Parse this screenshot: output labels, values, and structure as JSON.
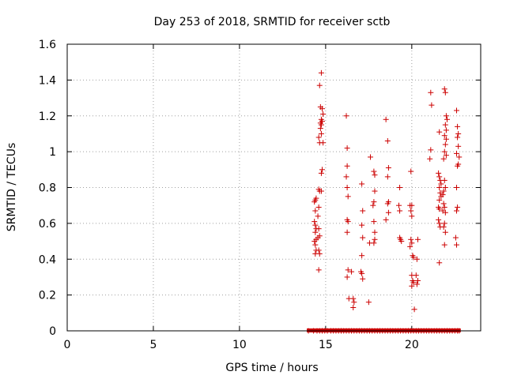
{
  "chart_data": {
    "type": "scatter",
    "title": "Day 253 of 2018, SRMTID for receiver sctb",
    "xlabel": "GPS time / hours",
    "ylabel": "SRMTID / TECUs",
    "xlim": [
      0,
      24
    ],
    "ylim": [
      0,
      1.6
    ],
    "xticks": [
      0,
      5,
      10,
      15,
      20
    ],
    "xtick_labels": [
      "0",
      "5",
      "10",
      "15",
      "20"
    ],
    "yticks": [
      0,
      0.2,
      0.4,
      0.6,
      0.8,
      1.0,
      1.2,
      1.4,
      1.6
    ],
    "ytick_labels": [
      "0",
      "0.2",
      "0.4",
      "0.6",
      "0.8",
      "1",
      "1.2",
      "1.4",
      "1.6"
    ],
    "grid": true,
    "marker": "plus",
    "color": "#cc0000",
    "series": [
      {
        "name": "SRMTID",
        "points": [
          [
            14.4,
            0.73
          ],
          [
            14.45,
            0.74
          ],
          [
            14.35,
            0.72
          ],
          [
            14.4,
            0.67
          ],
          [
            14.35,
            0.61
          ],
          [
            14.4,
            0.59
          ],
          [
            14.45,
            0.57
          ],
          [
            14.4,
            0.55
          ],
          [
            14.45,
            0.51
          ],
          [
            14.35,
            0.5
          ],
          [
            14.4,
            0.48
          ],
          [
            14.45,
            0.45
          ],
          [
            14.4,
            0.43
          ],
          [
            14.6,
            0.79
          ],
          [
            14.65,
            0.78
          ],
          [
            14.6,
            0.69
          ],
          [
            14.55,
            0.64
          ],
          [
            14.6,
            0.57
          ],
          [
            14.65,
            0.53
          ],
          [
            14.55,
            0.52
          ],
          [
            14.6,
            0.45
          ],
          [
            14.65,
            0.43
          ],
          [
            14.6,
            0.34
          ],
          [
            14.75,
            1.44
          ],
          [
            14.65,
            1.37
          ],
          [
            14.7,
            1.25
          ],
          [
            14.8,
            1.24
          ],
          [
            14.85,
            1.21
          ],
          [
            14.75,
            1.18
          ],
          [
            14.7,
            1.16
          ],
          [
            14.8,
            1.17
          ],
          [
            14.75,
            1.15
          ],
          [
            14.7,
            1.13
          ],
          [
            14.75,
            1.1
          ],
          [
            14.6,
            1.08
          ],
          [
            14.65,
            1.05
          ],
          [
            14.85,
            1.05
          ],
          [
            14.8,
            0.9
          ],
          [
            14.75,
            0.88
          ],
          [
            14.75,
            0.78
          ],
          [
            16.2,
            1.2
          ],
          [
            16.25,
            1.02
          ],
          [
            16.25,
            0.92
          ],
          [
            16.2,
            0.86
          ],
          [
            16.25,
            0.8
          ],
          [
            16.3,
            0.75
          ],
          [
            16.25,
            0.62
          ],
          [
            16.3,
            0.61
          ],
          [
            16.25,
            0.55
          ],
          [
            16.3,
            0.34
          ],
          [
            16.25,
            0.3
          ],
          [
            16.35,
            0.18
          ],
          [
            16.5,
            0.33
          ],
          [
            16.6,
            0.18
          ],
          [
            16.65,
            0.16
          ],
          [
            16.6,
            0.13
          ],
          [
            17.1,
            0.82
          ],
          [
            17.15,
            0.67
          ],
          [
            17.1,
            0.59
          ],
          [
            17.15,
            0.52
          ],
          [
            17.1,
            0.42
          ],
          [
            17.05,
            0.33
          ],
          [
            17.1,
            0.32
          ],
          [
            17.15,
            0.29
          ],
          [
            17.6,
            0.97
          ],
          [
            17.55,
            0.49
          ],
          [
            17.5,
            0.16
          ],
          [
            17.8,
            0.89
          ],
          [
            17.85,
            0.87
          ],
          [
            17.85,
            0.78
          ],
          [
            17.8,
            0.72
          ],
          [
            17.75,
            0.7
          ],
          [
            17.8,
            0.61
          ],
          [
            17.85,
            0.55
          ],
          [
            17.85,
            0.51
          ],
          [
            17.8,
            0.49
          ],
          [
            18.5,
            1.18
          ],
          [
            18.6,
            1.06
          ],
          [
            18.65,
            0.91
          ],
          [
            18.6,
            0.86
          ],
          [
            18.65,
            0.72
          ],
          [
            18.6,
            0.71
          ],
          [
            18.65,
            0.66
          ],
          [
            18.5,
            0.62
          ],
          [
            19.3,
            0.8
          ],
          [
            19.25,
            0.7
          ],
          [
            19.3,
            0.67
          ],
          [
            19.35,
            0.51
          ],
          [
            19.3,
            0.52
          ],
          [
            19.4,
            0.5
          ],
          [
            19.95,
            0.89
          ],
          [
            19.9,
            0.7
          ],
          [
            20.0,
            0.7
          ],
          [
            19.95,
            0.67
          ],
          [
            20.0,
            0.64
          ],
          [
            19.95,
            0.51
          ],
          [
            20.0,
            0.49
          ],
          [
            19.9,
            0.47
          ],
          [
            20.05,
            0.42
          ],
          [
            20.1,
            0.41
          ],
          [
            20.0,
            0.31
          ],
          [
            20.05,
            0.28
          ],
          [
            20.1,
            0.27
          ],
          [
            20.0,
            0.25
          ],
          [
            20.15,
            0.12
          ],
          [
            20.35,
            0.51
          ],
          [
            20.3,
            0.4
          ],
          [
            20.25,
            0.31
          ],
          [
            20.35,
            0.28
          ],
          [
            20.3,
            0.26
          ],
          [
            21.1,
            1.33
          ],
          [
            21.15,
            1.26
          ],
          [
            21.1,
            1.01
          ],
          [
            21.05,
            0.96
          ],
          [
            21.6,
            1.11
          ],
          [
            21.55,
            0.88
          ],
          [
            21.6,
            0.86
          ],
          [
            21.65,
            0.84
          ],
          [
            21.7,
            0.82
          ],
          [
            21.6,
            0.8
          ],
          [
            21.65,
            0.77
          ],
          [
            21.7,
            0.75
          ],
          [
            21.6,
            0.73
          ],
          [
            21.55,
            0.69
          ],
          [
            21.6,
            0.68
          ],
          [
            21.55,
            0.62
          ],
          [
            21.6,
            0.6
          ],
          [
            21.65,
            0.58
          ],
          [
            21.6,
            0.38
          ],
          [
            21.9,
            1.35
          ],
          [
            21.95,
            1.33
          ],
          [
            22.0,
            1.2
          ],
          [
            22.05,
            1.18
          ],
          [
            21.95,
            1.15
          ],
          [
            22.0,
            1.12
          ],
          [
            21.9,
            1.09
          ],
          [
            22.0,
            1.07
          ],
          [
            21.95,
            1.04
          ],
          [
            21.9,
            1.0
          ],
          [
            22.0,
            0.98
          ],
          [
            21.85,
            0.96
          ],
          [
            21.9,
            0.84
          ],
          [
            21.95,
            0.8
          ],
          [
            21.85,
            0.78
          ],
          [
            21.8,
            0.76
          ],
          [
            21.85,
            0.71
          ],
          [
            21.9,
            0.69
          ],
          [
            21.8,
            0.67
          ],
          [
            21.95,
            0.66
          ],
          [
            21.9,
            0.6
          ],
          [
            21.85,
            0.58
          ],
          [
            21.95,
            0.55
          ],
          [
            21.9,
            0.48
          ],
          [
            22.6,
            1.23
          ],
          [
            22.65,
            1.14
          ],
          [
            22.7,
            1.1
          ],
          [
            22.65,
            1.08
          ],
          [
            22.7,
            1.03
          ],
          [
            22.6,
            0.99
          ],
          [
            22.75,
            0.97
          ],
          [
            22.7,
            0.93
          ],
          [
            22.65,
            0.92
          ],
          [
            22.6,
            0.8
          ],
          [
            22.65,
            0.69
          ],
          [
            22.6,
            0.67
          ],
          [
            22.55,
            0.52
          ],
          [
            22.6,
            0.48
          ]
        ],
        "baseline_points": [
          [
            14.0,
            0
          ],
          [
            14.3,
            0
          ],
          [
            14.5,
            0
          ],
          [
            14.65,
            0
          ],
          [
            14.8,
            0
          ],
          [
            14.95,
            0
          ],
          [
            15.1,
            0
          ],
          [
            15.3,
            0
          ],
          [
            15.45,
            0
          ],
          [
            15.6,
            0
          ],
          [
            15.75,
            0
          ],
          [
            15.9,
            0
          ],
          [
            16.05,
            0
          ],
          [
            16.2,
            0
          ],
          [
            16.35,
            0
          ],
          [
            16.5,
            0
          ],
          [
            16.65,
            0
          ],
          [
            16.8,
            0
          ],
          [
            16.95,
            0
          ],
          [
            17.1,
            0
          ],
          [
            17.25,
            0
          ],
          [
            17.4,
            0
          ],
          [
            17.55,
            0
          ],
          [
            17.7,
            0
          ],
          [
            17.85,
            0
          ],
          [
            18.0,
            0
          ],
          [
            18.15,
            0
          ],
          [
            18.3,
            0
          ],
          [
            18.45,
            0
          ],
          [
            18.6,
            0
          ],
          [
            18.75,
            0
          ],
          [
            18.9,
            0
          ],
          [
            19.05,
            0
          ],
          [
            19.2,
            0
          ],
          [
            19.35,
            0
          ],
          [
            19.5,
            0
          ],
          [
            19.65,
            0
          ],
          [
            19.8,
            0
          ],
          [
            19.95,
            0
          ],
          [
            20.1,
            0
          ],
          [
            20.25,
            0
          ],
          [
            20.4,
            0
          ],
          [
            20.55,
            0
          ],
          [
            20.7,
            0
          ],
          [
            20.85,
            0
          ],
          [
            21.0,
            0
          ],
          [
            21.15,
            0
          ],
          [
            21.3,
            0
          ],
          [
            21.45,
            0
          ],
          [
            21.6,
            0
          ],
          [
            21.75,
            0
          ],
          [
            21.9,
            0
          ],
          [
            22.05,
            0
          ],
          [
            22.2,
            0
          ],
          [
            22.35,
            0
          ],
          [
            22.5,
            0
          ],
          [
            22.65,
            0
          ],
          [
            22.75,
            0
          ]
        ]
      }
    ]
  }
}
